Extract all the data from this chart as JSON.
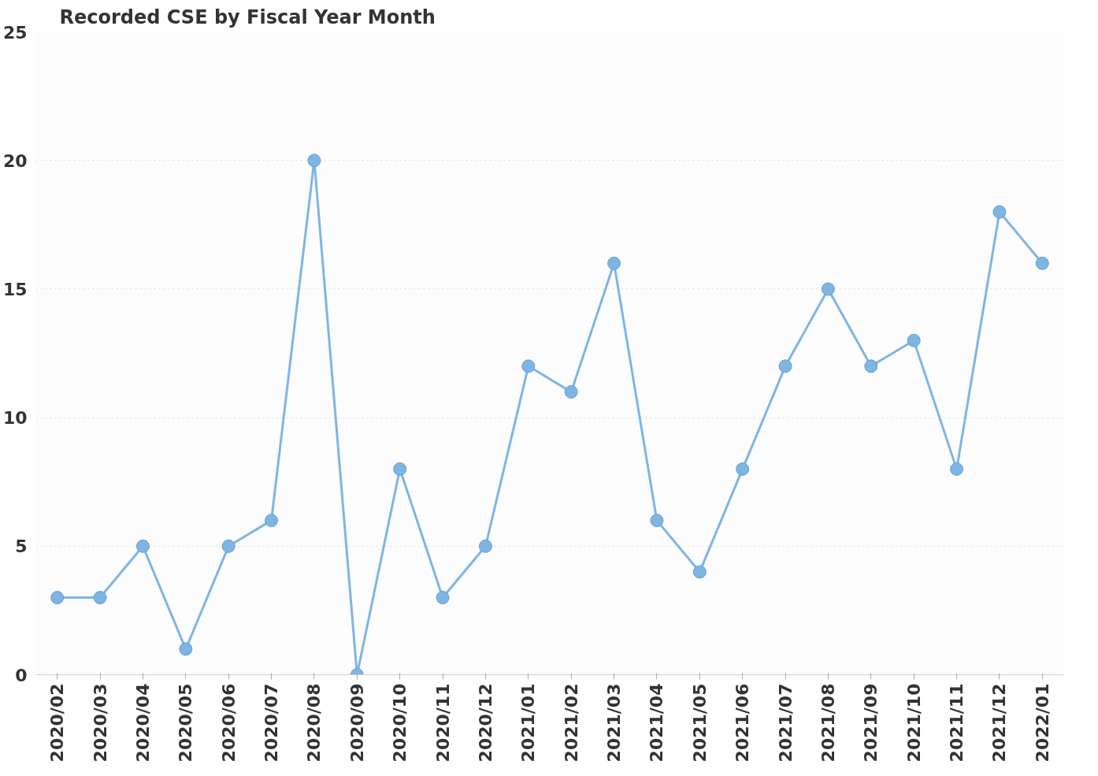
{
  "chart_data": {
    "type": "line",
    "title": "Recorded CSE by Fiscal Year Month",
    "categories": [
      "2020/02",
      "2020/03",
      "2020/04",
      "2020/05",
      "2020/06",
      "2020/07",
      "2020/08",
      "2020/09",
      "2020/10",
      "2020/11",
      "2020/12",
      "2021/01",
      "2021/02",
      "2021/03",
      "2021/04",
      "2021/05",
      "2021/06",
      "2021/07",
      "2021/08",
      "2021/09",
      "2021/10",
      "2021/11",
      "2021/12",
      "2022/01"
    ],
    "series": [
      {
        "color": "#7fb5e3",
        "values": [
          3,
          3,
          5,
          1,
          5,
          6,
          20,
          0,
          8,
          3,
          5,
          12,
          11,
          16,
          6,
          4,
          8,
          12,
          15,
          12,
          13,
          8,
          18,
          16
        ]
      }
    ],
    "ylim": [
      0,
      25
    ],
    "yticks": [
      0,
      5,
      10,
      15,
      20,
      25
    ],
    "grid": "y",
    "marker": "circle",
    "line_style": "solid"
  }
}
